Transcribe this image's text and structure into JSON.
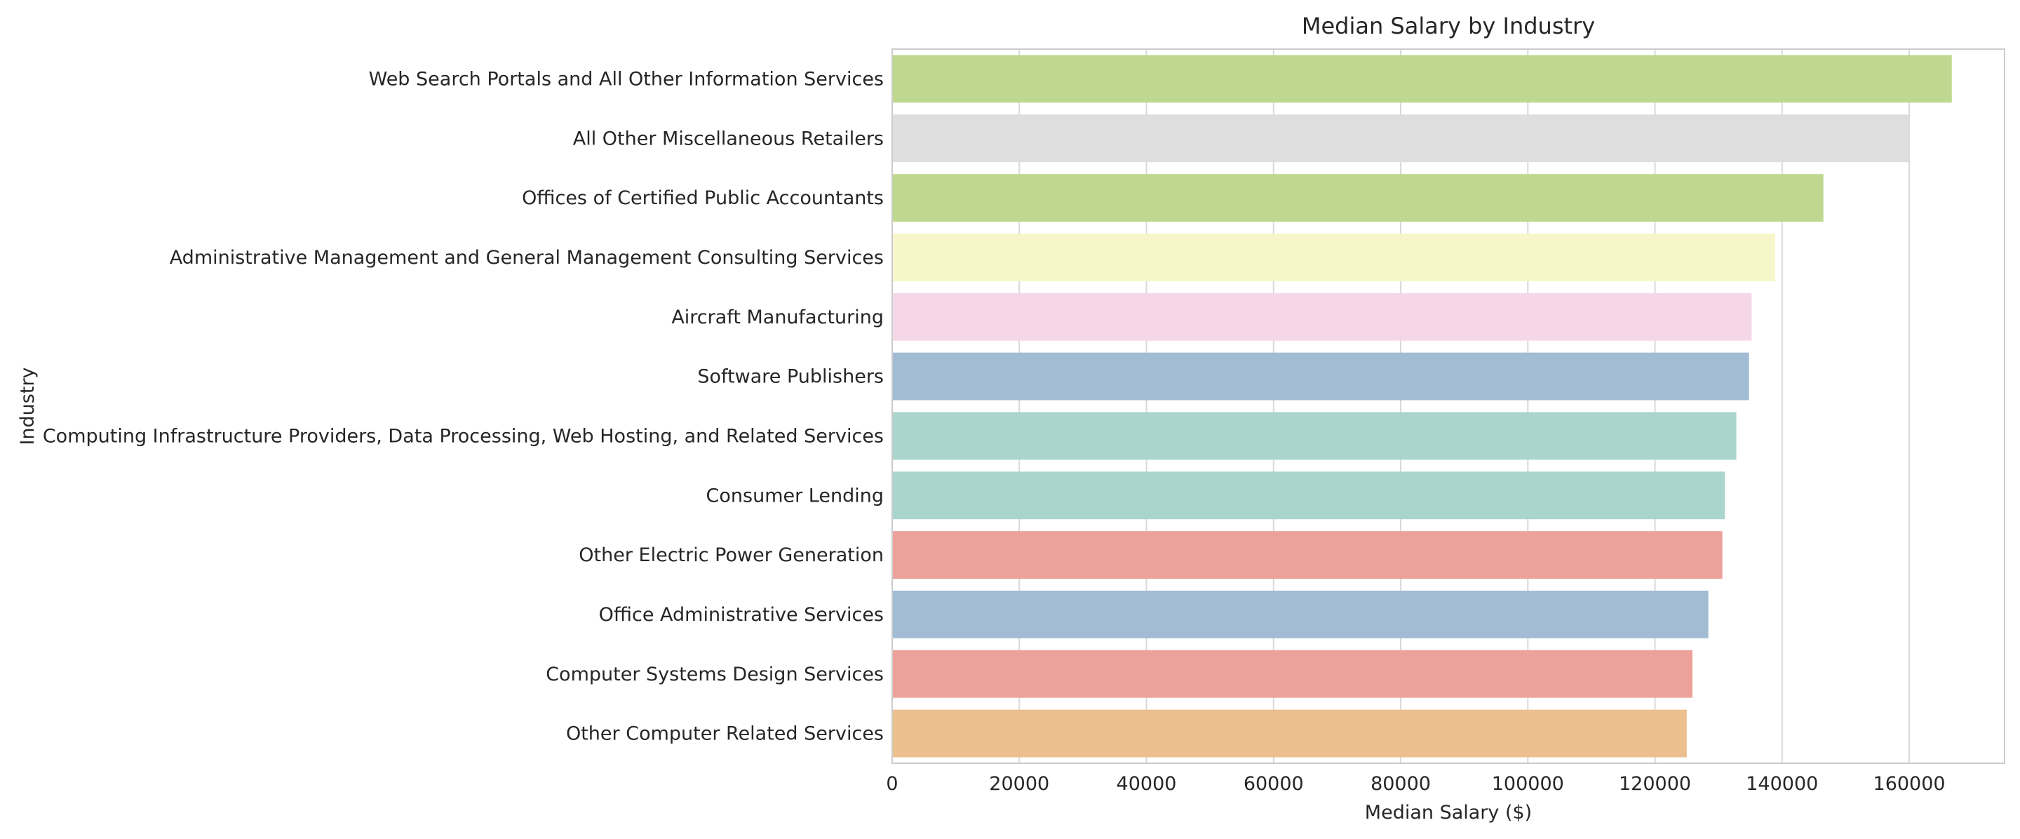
{
  "chart_data": {
    "type": "bar",
    "orientation": "horizontal",
    "title": "Median Salary by Industry",
    "xlabel": "Median Salary ($)",
    "ylabel": "Industry",
    "xlim": [
      0,
      175000
    ],
    "xticks": [
      0,
      20000,
      40000,
      60000,
      80000,
      100000,
      120000,
      140000,
      160000
    ],
    "grid": "vertical",
    "categories": [
      "Web Search Portals and All Other Information Services",
      "All Other Miscellaneous Retailers",
      "Offices of Certified Public Accountants",
      "Administrative Management and General Management Consulting Services",
      "Aircraft Manufacturing",
      "Software Publishers",
      "Computing Infrastructure Providers, Data Processing, Web Hosting, and Related Services",
      "Consumer Lending",
      "Other Electric Power Generation",
      "Office Administrative Services",
      "Computer Systems Design Services",
      "Other Computer Related Services"
    ],
    "values": [
      166700,
      160000,
      146500,
      138900,
      135200,
      134800,
      132800,
      131000,
      130600,
      128400,
      125900,
      125000
    ],
    "colors": [
      "#bed98f",
      "#dedede",
      "#bed98f",
      "#f7f6ca",
      "#f6d7e7",
      "#a1bcd3",
      "#a9d5cd",
      "#a9d5cd",
      "#eca29a",
      "#a1bcd3",
      "#eca29a",
      "#ecbf8e"
    ]
  }
}
